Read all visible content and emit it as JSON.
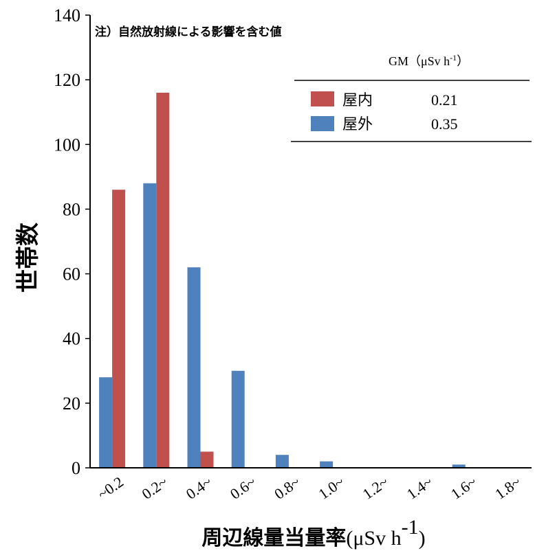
{
  "chart_data": {
    "type": "bar",
    "title": "",
    "note": "注）自然放射線による影響を含む値",
    "ylabel": "世帯数",
    "xlabel": "周辺線量当量率",
    "xlabel_unit_base": "(μSv h",
    "xlabel_unit_sup": "-1",
    "xlabel_unit_close": ")",
    "ylim": [
      0,
      140
    ],
    "yticks": [
      0,
      20,
      40,
      60,
      80,
      100,
      120,
      140
    ],
    "grid": false,
    "categories": [
      "~0.2",
      "0.2~",
      "0.4~",
      "0.6~",
      "0.8~",
      "1.0~",
      "1.2~",
      "1.4~",
      "1.6~",
      "1.8~"
    ],
    "series": [
      {
        "name": "屋外",
        "color": "#4f81bd",
        "values": [
          28,
          88,
          62,
          30,
          4,
          2,
          0,
          0,
          1,
          0
        ]
      },
      {
        "name": "屋内",
        "color": "#c0504d",
        "values": [
          86,
          116,
          5,
          0,
          0,
          0,
          0,
          0,
          0,
          0
        ]
      }
    ],
    "legend": {
      "placement": "top-right",
      "header_base": "GM（μSv h",
      "header_sup": "-1",
      "header_close": "）",
      "entries": [
        {
          "label": "屋内",
          "gm": "0.21",
          "color": "#c0504d"
        },
        {
          "label": "屋外",
          "gm": "0.35",
          "color": "#4f81bd"
        }
      ]
    }
  }
}
